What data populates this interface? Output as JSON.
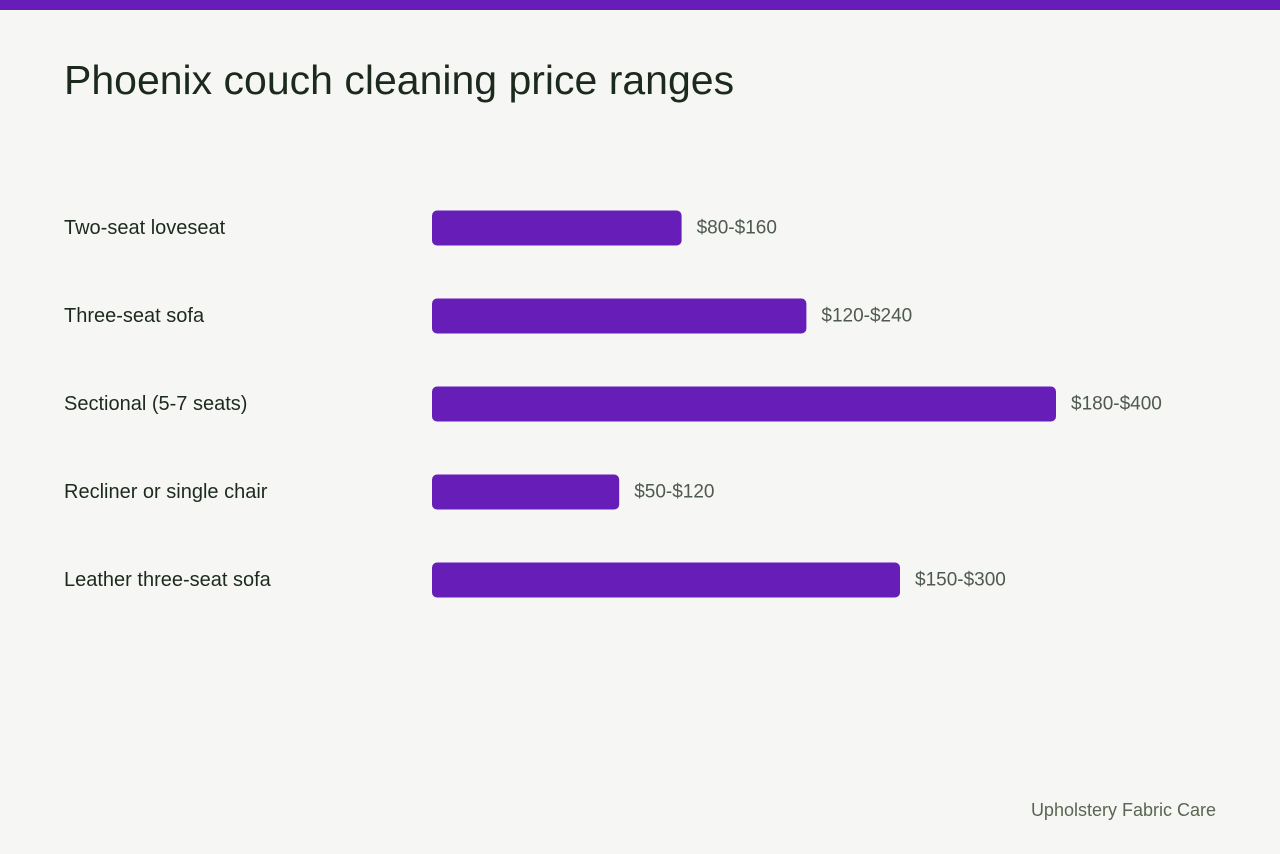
{
  "title": "Phoenix couch cleaning price ranges",
  "source": "Upholstery Fabric Care",
  "colors": {
    "accent": "#671db8",
    "background": "#f6f7f4",
    "text": "#1c2a1e",
    "value_text": "#4e5a50"
  },
  "chart_data": {
    "type": "bar",
    "orientation": "horizontal",
    "title": "Phoenix couch cleaning price ranges",
    "categories": [
      "Two-seat loveseat",
      "Three-seat sofa",
      "Sectional (5-7 seats)",
      "Recliner or single chair",
      "Leather three-seat sofa"
    ],
    "values": [
      160,
      240,
      400,
      120,
      300
    ],
    "value_labels": [
      "$80-$160",
      "$120-$240",
      "$180-$400",
      "$50-$120",
      "$150-$300"
    ],
    "xlim": [
      0,
      400
    ],
    "grid": false,
    "legend": "none"
  }
}
